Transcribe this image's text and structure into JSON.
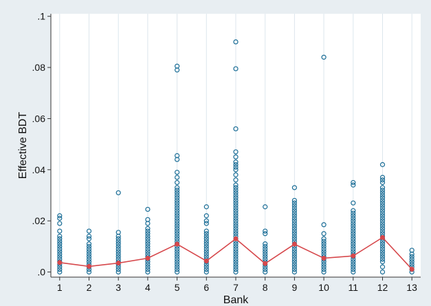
{
  "chart_data": {
    "type": "scatter",
    "xlabel": "Bank",
    "ylabel": "Effective BDT",
    "xlim": [
      0.7,
      13.3
    ],
    "ylim": [
      -0.002,
      0.101
    ],
    "x_ticks": [
      1,
      2,
      3,
      4,
      5,
      6,
      7,
      8,
      9,
      10,
      11,
      12,
      13
    ],
    "y_ticks": [
      {
        "value": 0.0,
        "label": ".0"
      },
      {
        "value": 0.02,
        "label": ".02"
      },
      {
        "value": 0.04,
        "label": ".04"
      },
      {
        "value": 0.06,
        "label": ".06"
      },
      {
        "value": 0.08,
        "label": ".08"
      },
      {
        "value": 0.1,
        "label": ".1"
      }
    ],
    "grid": {
      "vertical": true,
      "horizontal": false
    },
    "series": [
      {
        "kind": "scatter",
        "marker": "hollow-circle",
        "color": "#1a6d96",
        "points": [
          {
            "x": 1,
            "y": [
              0.0,
              0.001,
              0.002,
              0.003,
              0.004,
              0.005,
              0.006,
              0.007,
              0.008,
              0.009,
              0.01,
              0.011,
              0.012,
              0.013,
              0.014,
              0.016,
              0.019,
              0.021,
              0.022
            ]
          },
          {
            "x": 2,
            "y": [
              0.0,
              0.001,
              0.002,
              0.003,
              0.004,
              0.005,
              0.006,
              0.007,
              0.008,
              0.009,
              0.01,
              0.011,
              0.013,
              0.014,
              0.016
            ]
          },
          {
            "x": 3,
            "y": [
              0.0,
              0.001,
              0.002,
              0.003,
              0.004,
              0.005,
              0.006,
              0.007,
              0.008,
              0.009,
              0.01,
              0.011,
              0.012,
              0.013,
              0.014,
              0.0155,
              0.031
            ]
          },
          {
            "x": 4,
            "y": [
              0.0,
              0.001,
              0.002,
              0.003,
              0.004,
              0.005,
              0.006,
              0.007,
              0.008,
              0.009,
              0.01,
              0.011,
              0.012,
              0.013,
              0.014,
              0.015,
              0.016,
              0.017,
              0.019,
              0.0205,
              0.0245
            ]
          },
          {
            "x": 5,
            "y": [
              0.0,
              0.001,
              0.002,
              0.003,
              0.004,
              0.005,
              0.006,
              0.007,
              0.008,
              0.009,
              0.01,
              0.011,
              0.012,
              0.013,
              0.014,
              0.015,
              0.016,
              0.017,
              0.018,
              0.019,
              0.02,
              0.021,
              0.022,
              0.023,
              0.024,
              0.025,
              0.026,
              0.027,
              0.028,
              0.029,
              0.03,
              0.031,
              0.032,
              0.033,
              0.035,
              0.037,
              0.039,
              0.044,
              0.0455,
              0.079,
              0.0805
            ]
          },
          {
            "x": 6,
            "y": [
              0.0,
              0.001,
              0.002,
              0.003,
              0.004,
              0.005,
              0.006,
              0.007,
              0.008,
              0.009,
              0.01,
              0.011,
              0.012,
              0.013,
              0.014,
              0.015,
              0.016,
              0.019,
              0.02,
              0.022,
              0.0255
            ]
          },
          {
            "x": 7,
            "y": [
              0.0,
              0.001,
              0.002,
              0.003,
              0.004,
              0.005,
              0.006,
              0.007,
              0.008,
              0.009,
              0.01,
              0.011,
              0.012,
              0.013,
              0.014,
              0.015,
              0.016,
              0.017,
              0.018,
              0.019,
              0.02,
              0.021,
              0.022,
              0.023,
              0.024,
              0.025,
              0.026,
              0.027,
              0.028,
              0.029,
              0.03,
              0.031,
              0.032,
              0.033,
              0.034,
              0.036,
              0.038,
              0.04,
              0.041,
              0.042,
              0.043,
              0.045,
              0.047,
              0.056,
              0.0795,
              0.09
            ]
          },
          {
            "x": 8,
            "y": [
              0.0,
              0.001,
              0.002,
              0.003,
              0.004,
              0.005,
              0.006,
              0.007,
              0.008,
              0.009,
              0.01,
              0.011,
              0.015,
              0.016,
              0.0255
            ]
          },
          {
            "x": 9,
            "y": [
              0.0,
              0.001,
              0.002,
              0.003,
              0.004,
              0.005,
              0.006,
              0.007,
              0.008,
              0.009,
              0.01,
              0.011,
              0.012,
              0.013,
              0.014,
              0.015,
              0.016,
              0.017,
              0.018,
              0.019,
              0.02,
              0.021,
              0.022,
              0.023,
              0.024,
              0.025,
              0.026,
              0.027,
              0.028,
              0.033
            ]
          },
          {
            "x": 10,
            "y": [
              0.0,
              0.001,
              0.002,
              0.003,
              0.004,
              0.005,
              0.006,
              0.007,
              0.008,
              0.009,
              0.01,
              0.011,
              0.012,
              0.013,
              0.015,
              0.0185,
              0.084
            ]
          },
          {
            "x": 11,
            "y": [
              0.0,
              0.001,
              0.002,
              0.003,
              0.004,
              0.005,
              0.006,
              0.007,
              0.008,
              0.009,
              0.01,
              0.011,
              0.012,
              0.013,
              0.014,
              0.015,
              0.016,
              0.017,
              0.018,
              0.019,
              0.02,
              0.021,
              0.022,
              0.023,
              0.024,
              0.027,
              0.034,
              0.035
            ]
          },
          {
            "x": 12,
            "y": [
              0.0,
              0.002,
              0.004,
              0.005,
              0.006,
              0.007,
              0.008,
              0.009,
              0.01,
              0.011,
              0.012,
              0.013,
              0.014,
              0.015,
              0.016,
              0.017,
              0.018,
              0.019,
              0.02,
              0.021,
              0.022,
              0.023,
              0.024,
              0.025,
              0.026,
              0.027,
              0.028,
              0.029,
              0.03,
              0.031,
              0.032,
              0.033,
              0.035,
              0.036,
              0.037,
              0.042
            ]
          },
          {
            "x": 13,
            "y": [
              0.0,
              0.001,
              0.002,
              0.003,
              0.004,
              0.005,
              0.006,
              0.007,
              0.0085
            ]
          }
        ]
      },
      {
        "kind": "line",
        "marker": "filled-circle",
        "color": "#d6474b",
        "x": [
          1,
          2,
          3,
          4,
          5,
          6,
          7,
          8,
          9,
          10,
          11,
          12,
          13
        ],
        "values": [
          0.0037,
          0.0022,
          0.0035,
          0.0054,
          0.0109,
          0.0043,
          0.013,
          0.0033,
          0.0109,
          0.0054,
          0.0063,
          0.0135,
          0.0011
        ]
      }
    ]
  },
  "colors": {
    "background": "#e8eef2",
    "plot_background": "#ffffff",
    "grid": "#dce6ec",
    "axis": "#333333"
  }
}
